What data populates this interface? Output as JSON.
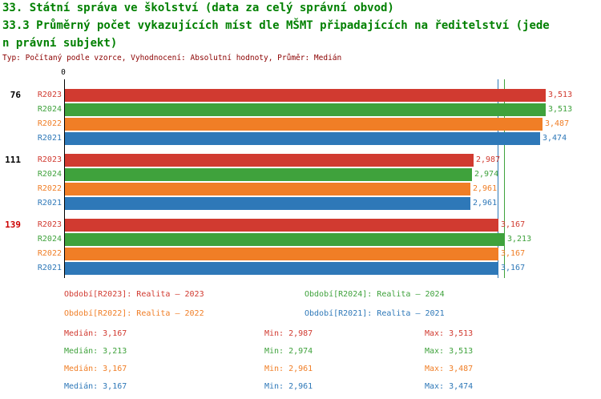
{
  "header": {
    "line1": "33. Státní správa ve školství (data za celý správní obvod)",
    "line2": "33.3 Průměrný počet vykazujících míst dle MŠMT připadajících na ředitelství (jede",
    "line3": "n právní subjekt)",
    "meta": "Typ: Počítaný podle vzorce, Vyhodnocení: Absolutní hodnoty, Průměr: Medián",
    "title_color": "#008000",
    "meta_color": "#8b0000"
  },
  "chart_data": {
    "type": "bar",
    "orientation": "horizontal",
    "origin_label": "0",
    "x_axis": {
      "min": 0,
      "scale_max": 3.513
    },
    "series_order": [
      "R2023",
      "R2024",
      "R2022",
      "R2021"
    ],
    "colors": {
      "R2023": "#d13a30",
      "R2024": "#3fa23c",
      "R2022": "#f07e26",
      "R2021": "#2e78b8"
    },
    "groups": [
      {
        "label": "76",
        "label_color": "#000000",
        "bars": [
          {
            "series": "R2023",
            "value": 3.513,
            "label": "3,513"
          },
          {
            "series": "R2024",
            "value": 3.513,
            "label": "3,513"
          },
          {
            "series": "R2022",
            "value": 3.487,
            "label": "3,487"
          },
          {
            "series": "R2021",
            "value": 3.474,
            "label": "3,474"
          }
        ]
      },
      {
        "label": "111",
        "label_color": "#000000",
        "bars": [
          {
            "series": "R2023",
            "value": 2.987,
            "label": "2,987"
          },
          {
            "series": "R2024",
            "value": 2.974,
            "label": "2,974"
          },
          {
            "series": "R2022",
            "value": 2.961,
            "label": "2,961"
          },
          {
            "series": "R2021",
            "value": 2.961,
            "label": "2,961"
          }
        ]
      },
      {
        "label": "139",
        "label_color": "#cc0000",
        "bars": [
          {
            "series": "R2023",
            "value": 3.167,
            "label": "3,167"
          },
          {
            "series": "R2024",
            "value": 3.213,
            "label": "3,213"
          },
          {
            "series": "R2022",
            "value": 3.167,
            "label": "3,167"
          },
          {
            "series": "R2021",
            "value": 3.167,
            "label": "3,167"
          }
        ]
      }
    ],
    "median_lines": [
      {
        "value": 3.167,
        "color": "#2e78b8"
      },
      {
        "value": 3.213,
        "color": "#3fa23c"
      }
    ]
  },
  "legend": [
    {
      "text": "Období[R2023]: Realita – 2023",
      "color": "#d13a30"
    },
    {
      "text": "Období[R2024]: Realita – 2024",
      "color": "#3fa23c"
    },
    {
      "text": "Období[R2022]: Realita – 2022",
      "color": "#f07e26"
    },
    {
      "text": "Období[R2021]: Realita – 2021",
      "color": "#2e78b8"
    }
  ],
  "stats": [
    {
      "series": "R2023",
      "color": "#d13a30",
      "median": "Medián: 3,167",
      "min": "Min: 2,987",
      "max": "Max: 3,513"
    },
    {
      "series": "R2024",
      "color": "#3fa23c",
      "median": "Medián: 3,213",
      "min": "Min: 2,974",
      "max": "Max: 3,513"
    },
    {
      "series": "R2022",
      "color": "#f07e26",
      "median": "Medián: 3,167",
      "min": "Min: 2,961",
      "max": "Max: 3,487"
    },
    {
      "series": "R2021",
      "color": "#2e78b8",
      "median": "Medián: 3,167",
      "min": "Min: 2,961",
      "max": "Max: 3,474"
    }
  ]
}
